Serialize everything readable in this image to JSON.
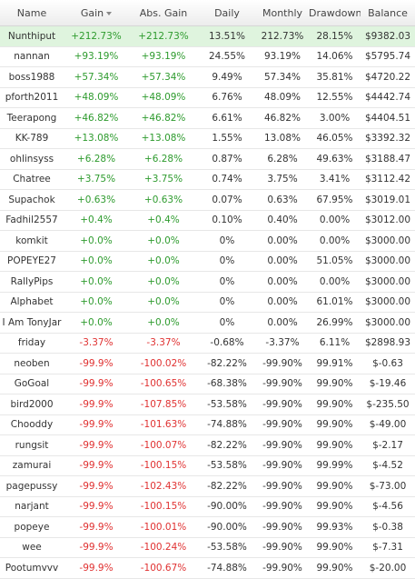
{
  "header": {
    "name": "Name",
    "gain": "Gain",
    "abs_gain": "Abs. Gain",
    "daily": "Daily",
    "monthly": "Monthly",
    "drawdown": "Drawdown",
    "balance": "Balance"
  },
  "sort": {
    "column": "gain",
    "direction": "descending"
  },
  "colors": {
    "positive": "#2e9b2e",
    "negative": "#e03232",
    "highlight_row": "#dff4de"
  },
  "rows": [
    {
      "name": "Nunthiput",
      "gain": "+212.73%",
      "abs_gain": "+212.73%",
      "daily": "13.51%",
      "monthly": "212.73%",
      "drawdown": "28.15%",
      "balance": "$9382.03",
      "sign": "pos",
      "highlight": true
    },
    {
      "name": "nannan",
      "gain": "+93.19%",
      "abs_gain": "+93.19%",
      "daily": "24.55%",
      "monthly": "93.19%",
      "drawdown": "14.06%",
      "balance": "$5795.74",
      "sign": "pos"
    },
    {
      "name": "boss1988",
      "gain": "+57.34%",
      "abs_gain": "+57.34%",
      "daily": "9.49%",
      "monthly": "57.34%",
      "drawdown": "35.81%",
      "balance": "$4720.22",
      "sign": "pos"
    },
    {
      "name": "pforth2011",
      "gain": "+48.09%",
      "abs_gain": "+48.09%",
      "daily": "6.76%",
      "monthly": "48.09%",
      "drawdown": "12.55%",
      "balance": "$4442.74",
      "sign": "pos"
    },
    {
      "name": "Teerapong",
      "gain": "+46.82%",
      "abs_gain": "+46.82%",
      "daily": "6.61%",
      "monthly": "46.82%",
      "drawdown": "3.00%",
      "balance": "$4404.51",
      "sign": "pos"
    },
    {
      "name": "KK-789",
      "gain": "+13.08%",
      "abs_gain": "+13.08%",
      "daily": "1.55%",
      "monthly": "13.08%",
      "drawdown": "46.05%",
      "balance": "$3392.32",
      "sign": "pos"
    },
    {
      "name": "ohlinsyss",
      "gain": "+6.28%",
      "abs_gain": "+6.28%",
      "daily": "0.87%",
      "monthly": "6.28%",
      "drawdown": "49.63%",
      "balance": "$3188.47",
      "sign": "pos"
    },
    {
      "name": "Chatree",
      "gain": "+3.75%",
      "abs_gain": "+3.75%",
      "daily": "0.74%",
      "monthly": "3.75%",
      "drawdown": "3.41%",
      "balance": "$3112.42",
      "sign": "pos"
    },
    {
      "name": "Supachok",
      "gain": "+0.63%",
      "abs_gain": "+0.63%",
      "daily": "0.07%",
      "monthly": "0.63%",
      "drawdown": "67.95%",
      "balance": "$3019.01",
      "sign": "pos"
    },
    {
      "name": "Fadhil2557",
      "gain": "+0.4%",
      "abs_gain": "+0.4%",
      "daily": "0.10%",
      "monthly": "0.40%",
      "drawdown": "0.00%",
      "balance": "$3012.00",
      "sign": "pos"
    },
    {
      "name": "komkit",
      "gain": "+0.0%",
      "abs_gain": "+0.0%",
      "daily": "0%",
      "monthly": "0.00%",
      "drawdown": "0.00%",
      "balance": "$3000.00",
      "sign": "pos"
    },
    {
      "name": "POPEYE27",
      "gain": "+0.0%",
      "abs_gain": "+0.0%",
      "daily": "0%",
      "monthly": "0.00%",
      "drawdown": "51.05%",
      "balance": "$3000.00",
      "sign": "pos"
    },
    {
      "name": "RallyPips",
      "gain": "+0.0%",
      "abs_gain": "+0.0%",
      "daily": "0%",
      "monthly": "0.00%",
      "drawdown": "0.00%",
      "balance": "$3000.00",
      "sign": "pos"
    },
    {
      "name": "Alphabet",
      "gain": "+0.0%",
      "abs_gain": "+0.0%",
      "daily": "0%",
      "monthly": "0.00%",
      "drawdown": "61.01%",
      "balance": "$3000.00",
      "sign": "pos"
    },
    {
      "name": "I Am TonyJar",
      "gain": "+0.0%",
      "abs_gain": "+0.0%",
      "daily": "0%",
      "monthly": "0.00%",
      "drawdown": "26.99%",
      "balance": "$3000.00",
      "sign": "pos"
    },
    {
      "name": "friday",
      "gain": "-3.37%",
      "abs_gain": "-3.37%",
      "daily": "-0.68%",
      "monthly": "-3.37%",
      "drawdown": "6.11%",
      "balance": "$2898.93",
      "sign": "neg"
    },
    {
      "name": "neoben",
      "gain": "-99.9%",
      "abs_gain": "-100.02%",
      "daily": "-82.22%",
      "monthly": "-99.90%",
      "drawdown": "99.91%",
      "balance": "$-0.63",
      "sign": "neg"
    },
    {
      "name": "GoGoal",
      "gain": "-99.9%",
      "abs_gain": "-100.65%",
      "daily": "-68.38%",
      "monthly": "-99.90%",
      "drawdown": "99.90%",
      "balance": "$-19.46",
      "sign": "neg"
    },
    {
      "name": "bird2000",
      "gain": "-99.9%",
      "abs_gain": "-107.85%",
      "daily": "-53.58%",
      "monthly": "-99.90%",
      "drawdown": "99.90%",
      "balance": "$-235.50",
      "sign": "neg"
    },
    {
      "name": "Chooddy",
      "gain": "-99.9%",
      "abs_gain": "-101.63%",
      "daily": "-74.88%",
      "monthly": "-99.90%",
      "drawdown": "99.90%",
      "balance": "$-49.00",
      "sign": "neg"
    },
    {
      "name": "rungsit",
      "gain": "-99.9%",
      "abs_gain": "-100.07%",
      "daily": "-82.22%",
      "monthly": "-99.90%",
      "drawdown": "99.90%",
      "balance": "$-2.17",
      "sign": "neg"
    },
    {
      "name": "zamurai",
      "gain": "-99.9%",
      "abs_gain": "-100.15%",
      "daily": "-53.58%",
      "monthly": "-99.90%",
      "drawdown": "99.99%",
      "balance": "$-4.52",
      "sign": "neg"
    },
    {
      "name": "pagepussy",
      "gain": "-99.9%",
      "abs_gain": "-102.43%",
      "daily": "-82.22%",
      "monthly": "-99.90%",
      "drawdown": "99.90%",
      "balance": "$-73.00",
      "sign": "neg"
    },
    {
      "name": "narjant",
      "gain": "-99.9%",
      "abs_gain": "-100.15%",
      "daily": "-90.00%",
      "monthly": "-99.90%",
      "drawdown": "99.90%",
      "balance": "$-4.56",
      "sign": "neg"
    },
    {
      "name": "popeye",
      "gain": "-99.9%",
      "abs_gain": "-100.01%",
      "daily": "-90.00%",
      "monthly": "-99.90%",
      "drawdown": "99.93%",
      "balance": "$-0.38",
      "sign": "neg"
    },
    {
      "name": "wee",
      "gain": "-99.9%",
      "abs_gain": "-100.24%",
      "daily": "-53.58%",
      "monthly": "-99.90%",
      "drawdown": "99.90%",
      "balance": "$-7.31",
      "sign": "neg"
    },
    {
      "name": "Pootumvvv",
      "gain": "-99.9%",
      "abs_gain": "-100.67%",
      "daily": "-74.88%",
      "monthly": "-99.90%",
      "drawdown": "99.90%",
      "balance": "$-20.00",
      "sign": "neg"
    }
  ]
}
